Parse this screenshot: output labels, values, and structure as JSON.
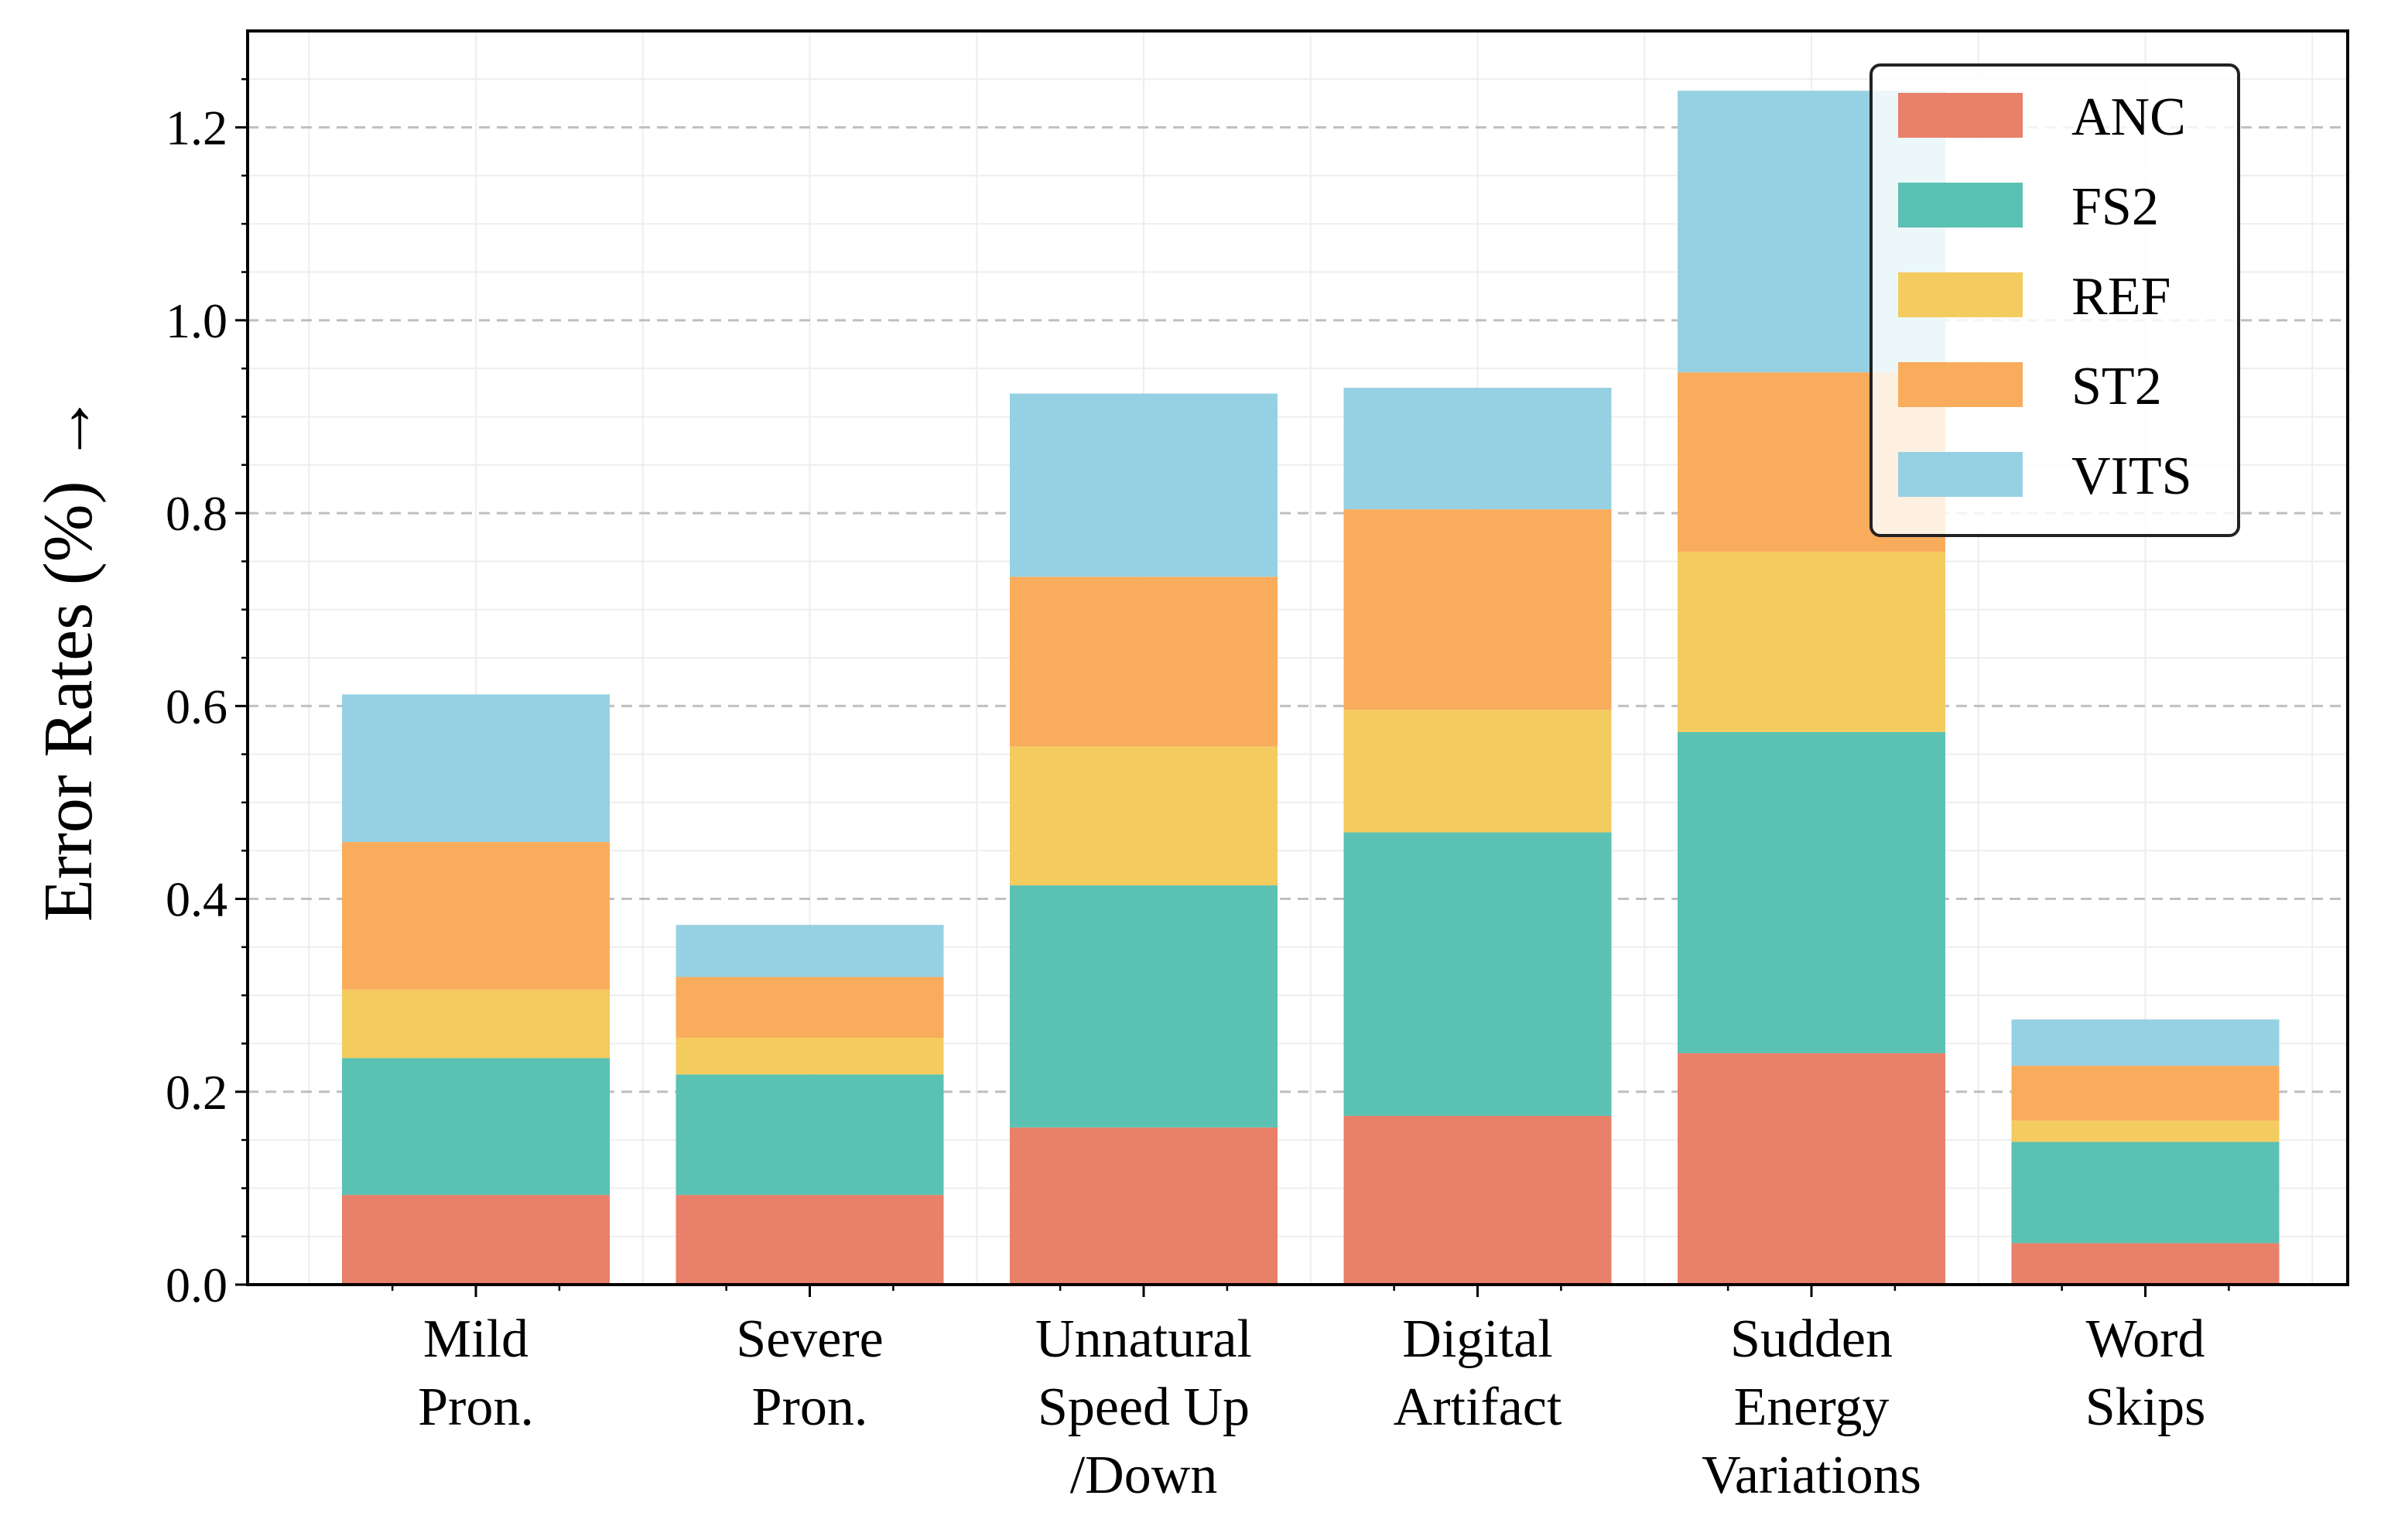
{
  "chart_data": {
    "type": "bar",
    "stacked": true,
    "title": "",
    "xlabel": "",
    "ylabel": "Error Rates (%) →",
    "ylim": [
      0,
      1.3
    ],
    "yticks": [
      "0.0",
      "0.2",
      "0.4",
      "0.6",
      "0.8",
      "1.0",
      "1.2"
    ],
    "grid": true,
    "legend_position": "top-right",
    "categories": [
      [
        "Mild",
        "Pron."
      ],
      [
        "Severe",
        "Pron."
      ],
      [
        "Unnatural",
        "Speed Up",
        "/Down"
      ],
      [
        "Digital",
        "Artifact"
      ],
      [
        "Sudden",
        "Energy",
        "Variations"
      ],
      [
        "Word",
        "Skips"
      ]
    ],
    "series": [
      {
        "name": "ANC",
        "color": "#E8806A",
        "values": [
          0.093,
          0.093,
          0.163,
          0.175,
          0.24,
          0.043
        ]
      },
      {
        "name": "FS2",
        "color": "#5BC1B2",
        "values": [
          0.142,
          0.125,
          0.251,
          0.294,
          0.333,
          0.105
        ]
      },
      {
        "name": "REF",
        "color": "#F4CB5F",
        "values": [
          0.071,
          0.038,
          0.144,
          0.127,
          0.187,
          0.022
        ]
      },
      {
        "name": "ST2",
        "color": "#F9AC5C",
        "values": [
          0.153,
          0.063,
          0.176,
          0.208,
          0.186,
          0.057
        ]
      },
      {
        "name": "VITS",
        "color": "#96D1E3",
        "values": [
          0.153,
          0.054,
          0.19,
          0.126,
          0.292,
          0.048
        ]
      }
    ]
  }
}
